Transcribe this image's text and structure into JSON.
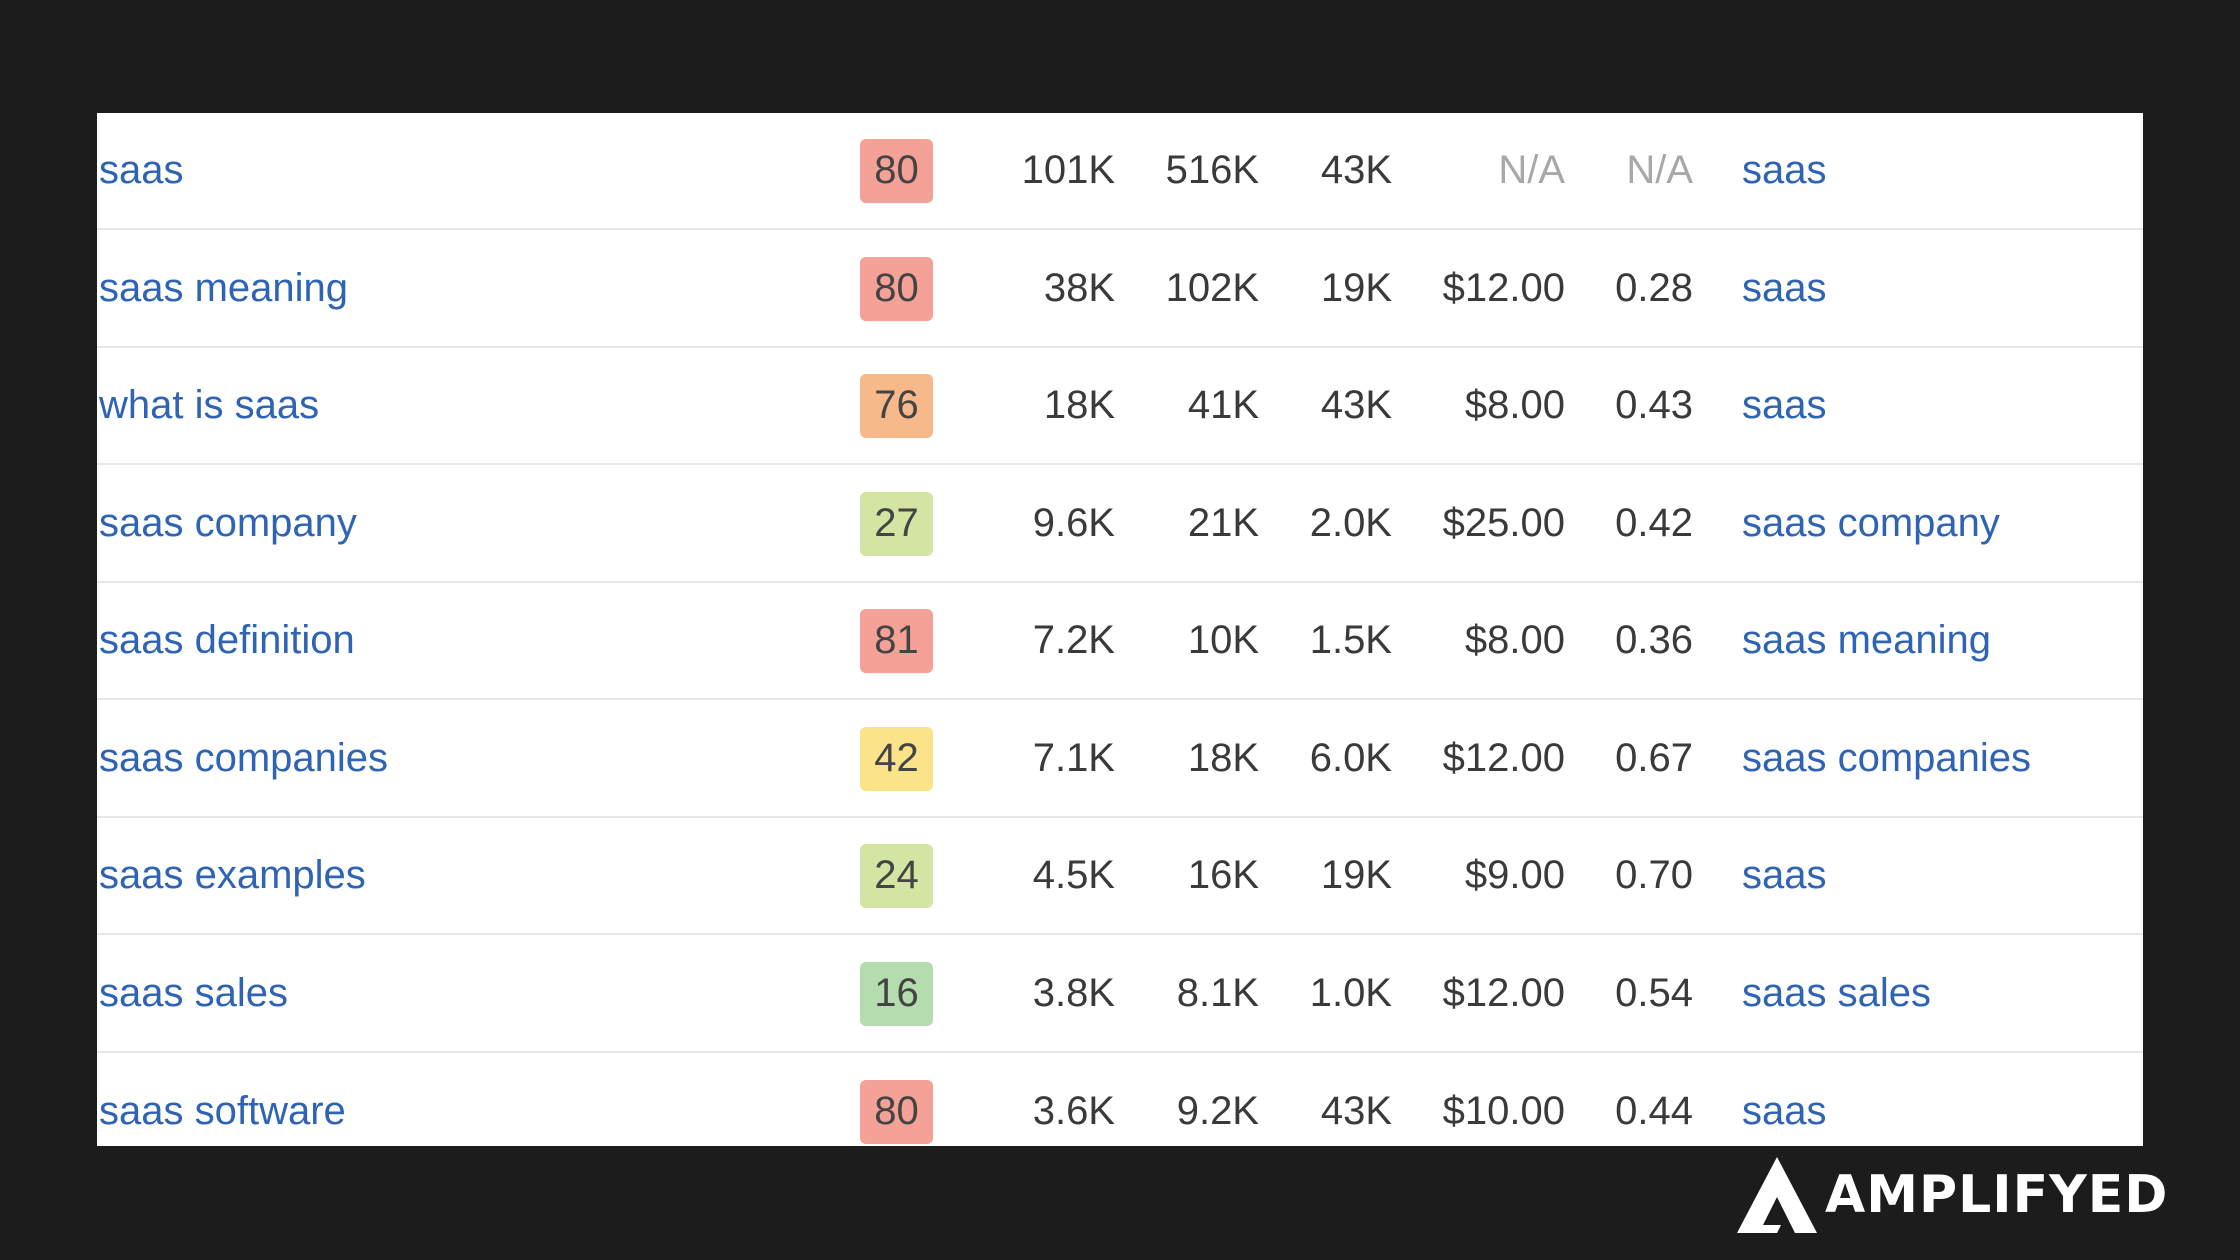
{
  "table": {
    "rows": [
      {
        "keyword": "saas",
        "kd": "80",
        "kd_color": "#f4a197",
        "volume": "101K",
        "global_volume": "516K",
        "traffic_potential": "43K",
        "cpc": "N/A",
        "cps": "N/A",
        "parent_topic": "saas"
      },
      {
        "keyword": "saas meaning",
        "kd": "80",
        "kd_color": "#f4a197",
        "volume": "38K",
        "global_volume": "102K",
        "traffic_potential": "19K",
        "cpc": "$12.00",
        "cps": "0.28",
        "parent_topic": "saas"
      },
      {
        "keyword": "what is saas",
        "kd": "76",
        "kd_color": "#f8b98a",
        "volume": "18K",
        "global_volume": "41K",
        "traffic_potential": "43K",
        "cpc": "$8.00",
        "cps": "0.43",
        "parent_topic": "saas"
      },
      {
        "keyword": "saas company",
        "kd": "27",
        "kd_color": "#d3e4a3",
        "volume": "9.6K",
        "global_volume": "21K",
        "traffic_potential": "2.0K",
        "cpc": "$25.00",
        "cps": "0.42",
        "parent_topic": "saas company"
      },
      {
        "keyword": "saas definition",
        "kd": "81",
        "kd_color": "#f4a197",
        "volume": "7.2K",
        "global_volume": "10K",
        "traffic_potential": "1.5K",
        "cpc": "$8.00",
        "cps": "0.36",
        "parent_topic": "saas meaning"
      },
      {
        "keyword": "saas companies",
        "kd": "42",
        "kd_color": "#fbe38a",
        "volume": "7.1K",
        "global_volume": "18K",
        "traffic_potential": "6.0K",
        "cpc": "$12.00",
        "cps": "0.67",
        "parent_topic": "saas companies"
      },
      {
        "keyword": "saas examples",
        "kd": "24",
        "kd_color": "#d3e4a3",
        "volume": "4.5K",
        "global_volume": "16K",
        "traffic_potential": "19K",
        "cpc": "$9.00",
        "cps": "0.70",
        "parent_topic": "saas"
      },
      {
        "keyword": "saas sales",
        "kd": "16",
        "kd_color": "#b4dcae",
        "volume": "3.8K",
        "global_volume": "8.1K",
        "traffic_potential": "1.0K",
        "cpc": "$12.00",
        "cps": "0.54",
        "parent_topic": "saas sales"
      },
      {
        "keyword": "saas software",
        "kd": "80",
        "kd_color": "#f4a197",
        "volume": "3.6K",
        "global_volume": "9.2K",
        "traffic_potential": "43K",
        "cpc": "$10.00",
        "cps": "0.44",
        "parent_topic": "saas"
      }
    ]
  },
  "brand": {
    "logo_icon": "a-triangle-logo-icon",
    "name": "AMPLIFYED"
  }
}
